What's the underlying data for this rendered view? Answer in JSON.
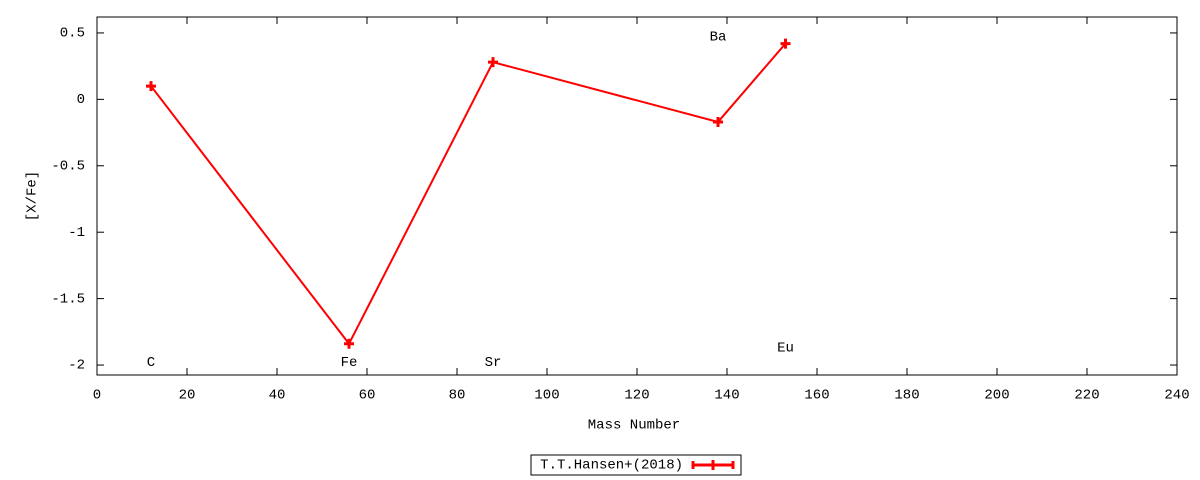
{
  "chart_data": {
    "type": "line",
    "x": [
      12,
      56,
      88,
      138,
      153
    ],
    "series": [
      {
        "name": "T.T.Hansen+(2018)",
        "color": "#ff0000",
        "values": [
          0.1,
          -1.84,
          0.28,
          -0.17,
          0.42
        ]
      }
    ],
    "xlabel": "Mass Number",
    "ylabel": "[X/Fe]",
    "xlim": [
      0,
      240
    ],
    "ylim": [
      -2.075,
      0.62
    ],
    "xticks": [
      0,
      20,
      40,
      60,
      80,
      100,
      120,
      140,
      160,
      180,
      200,
      220,
      240
    ],
    "yticks": [
      -2,
      -1.5,
      -1,
      -0.5,
      0,
      0.5
    ],
    "annotations": [
      {
        "text": "C",
        "x": 12,
        "y": -1.98
      },
      {
        "text": "Fe",
        "x": 56,
        "y": -1.98
      },
      {
        "text": "Sr",
        "x": 88,
        "y": -1.98
      },
      {
        "text": "Ba",
        "x": 138,
        "y": 0.47
      },
      {
        "text": "Eu",
        "x": 153,
        "y": -1.87
      }
    ],
    "legend": "bottom"
  }
}
